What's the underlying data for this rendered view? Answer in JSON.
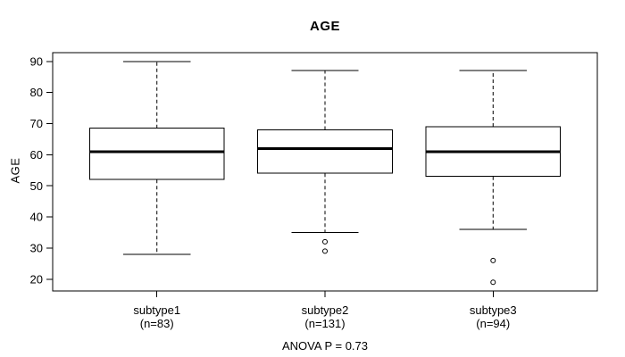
{
  "title": "AGE",
  "colors": {
    "foreground": "#000000",
    "background": "#ffffff",
    "box_fill": "#ffffff"
  },
  "chart_data": {
    "type": "boxplot",
    "title": "AGE",
    "xlabel": "",
    "ylabel": "AGE",
    "annotation": "ANOVA P = 0.73",
    "ylim": [
      16.2,
      92.8
    ],
    "yticks": [
      20,
      30,
      40,
      50,
      60,
      70,
      80,
      90
    ],
    "grid": false,
    "legend": "none",
    "groups": [
      {
        "label": "subtype1",
        "sublabel": "(n=83)",
        "n": 83,
        "whisker_low": 28,
        "q1": 52,
        "median": 61,
        "q3": 68.5,
        "whisker_high": 90,
        "outliers": []
      },
      {
        "label": "subtype2",
        "sublabel": "(n=131)",
        "n": 131,
        "whisker_low": 35,
        "q1": 54,
        "median": 62,
        "q3": 68,
        "whisker_high": 87,
        "outliers": [
          32,
          29
        ]
      },
      {
        "label": "subtype3",
        "sublabel": "(n=94)",
        "n": 94,
        "whisker_low": 36,
        "q1": 53,
        "median": 61,
        "q3": 69,
        "whisker_high": 87,
        "outliers": [
          26,
          19
        ]
      }
    ]
  }
}
